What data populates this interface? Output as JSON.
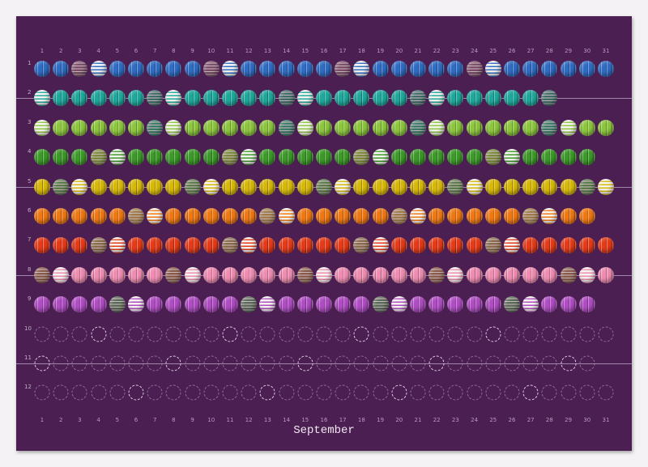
{
  "title": "September",
  "day_numbers": [
    1,
    2,
    3,
    4,
    5,
    6,
    7,
    8,
    9,
    10,
    11,
    12,
    13,
    14,
    15,
    16,
    17,
    18,
    19,
    20,
    21,
    22,
    23,
    24,
    25,
    26,
    27,
    28,
    29,
    30,
    31
  ],
  "months": [
    {
      "label": "1",
      "days": 31,
      "color": "#2f6cc4",
      "alt": "#7a4c6a",
      "sundays": [
        4,
        11,
        18,
        25
      ],
      "filled": true
    },
    {
      "label": "2",
      "days": 28,
      "color": "#1ea89c",
      "alt": "#3e6a6a",
      "sundays": [
        1,
        8,
        15,
        22
      ],
      "filled": true
    },
    {
      "label": "3",
      "days": 31,
      "color": "#8cc63c",
      "alt": "#3a7a6a",
      "sundays": [
        1,
        8,
        15,
        22,
        29
      ],
      "filled": true
    },
    {
      "label": "4",
      "days": 30,
      "color": "#3c9a28",
      "alt": "#7a8a3a",
      "sundays": [
        5,
        12,
        19,
        26
      ],
      "filled": true
    },
    {
      "label": "5",
      "days": 31,
      "color": "#d8b806",
      "alt": "#5a7a4a",
      "sundays": [
        3,
        10,
        17,
        24,
        31
      ],
      "filled": true
    },
    {
      "label": "6",
      "days": 30,
      "color": "#f07812",
      "alt": "#a07a4a",
      "sundays": [
        7,
        14,
        21,
        28
      ],
      "filled": true
    },
    {
      "label": "7",
      "days": 31,
      "color": "#e63a18",
      "alt": "#8a6a4a",
      "sundays": [
        5,
        12,
        19,
        26
      ],
      "filled": true
    },
    {
      "label": "8",
      "days": 31,
      "color": "#f08cb2",
      "alt": "#8a5a4a",
      "sundays": [
        2,
        9,
        16,
        23,
        30
      ],
      "filled": true
    },
    {
      "label": "9",
      "days": 30,
      "color": "#b04cc4",
      "alt": "#5a6a5a",
      "sundays": [
        6,
        13,
        20,
        27
      ],
      "filled": true
    },
    {
      "label": "10",
      "days": 31,
      "sundays": [
        4,
        11,
        18,
        25
      ],
      "filled": false
    },
    {
      "label": "11",
      "days": 30,
      "sundays": [
        1,
        8,
        15,
        22,
        29
      ],
      "filled": false
    },
    {
      "label": "12",
      "days": 31,
      "sundays": [
        6,
        13,
        20,
        27
      ],
      "filled": false
    }
  ],
  "colors": {
    "background": "#4b1f52",
    "sunday_bead": "#f4f2ee"
  }
}
